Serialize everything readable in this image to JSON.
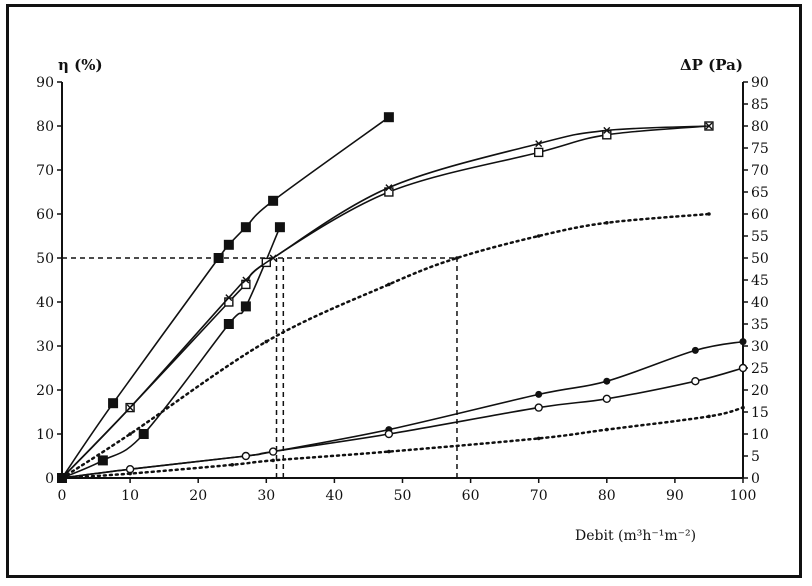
{
  "chart_data": {
    "type": "line",
    "ylabel_left": "η (%)",
    "ylabel_right": "ΔP (Pa)",
    "xlabel": "Debit (m³h⁻¹m⁻²)",
    "xlim": [
      0,
      100
    ],
    "ylim_left": [
      0,
      90
    ],
    "ylim_right": [
      0,
      90
    ],
    "x_ticks": [
      "0",
      "10",
      "20",
      "30",
      "40",
      "50",
      "60",
      "70",
      "80",
      "90",
      "100"
    ],
    "y_left_ticks": [
      "0",
      "10",
      "20",
      "30",
      "40",
      "50",
      "60",
      "70",
      "80",
      "90"
    ],
    "y_right_ticks": [
      "0",
      "5",
      "10",
      "15",
      "20",
      "25",
      "30",
      "35",
      "40",
      "45",
      "50",
      "55",
      "60",
      "65",
      "70",
      "75",
      "80",
      "85",
      "90"
    ],
    "series": [
      {
        "style": "solid",
        "marker": "filled-square",
        "axis": "left",
        "x": [
          0,
          7.5,
          23,
          24.5,
          27,
          31,
          48
        ],
        "y": [
          0,
          17,
          50,
          53,
          57,
          63,
          82
        ]
      },
      {
        "style": "solid",
        "marker": "filled-square",
        "axis": "left",
        "x": [
          0,
          6,
          12,
          24.5,
          27,
          32
        ],
        "y": [
          0,
          4,
          10,
          35,
          39,
          57
        ]
      },
      {
        "style": "solid",
        "marker": "open-square",
        "axis": "left",
        "x": [
          0,
          10,
          24.5,
          27,
          30,
          48,
          70,
          80,
          95
        ],
        "y": [
          0,
          16,
          40,
          44,
          49,
          65,
          74,
          78,
          80
        ]
      },
      {
        "style": "solid",
        "marker": "cross",
        "axis": "left",
        "x": [
          0,
          10,
          24.5,
          27,
          31,
          48,
          70,
          80,
          95
        ],
        "y": [
          0,
          16,
          41,
          45,
          50,
          66,
          76,
          79,
          80
        ]
      },
      {
        "style": "dotted",
        "marker": "dot",
        "axis": "left",
        "x": [
          0,
          10,
          30,
          48,
          58,
          70,
          80,
          95
        ],
        "y": [
          0,
          10,
          31,
          44,
          50,
          55,
          58,
          60
        ]
      },
      {
        "style": "solid",
        "marker": "filled-circle",
        "axis": "right",
        "x": [
          0,
          10,
          27,
          31,
          48,
          70,
          80,
          93,
          100
        ],
        "y": [
          0,
          2,
          5,
          6,
          11,
          19,
          22,
          29,
          31
        ]
      },
      {
        "style": "solid",
        "marker": "open-circle",
        "axis": "right",
        "x": [
          0,
          10,
          27,
          31,
          48,
          70,
          80,
          93,
          100
        ],
        "y": [
          0,
          2,
          5,
          6,
          10,
          16,
          18,
          22,
          25
        ]
      },
      {
        "style": "dotted",
        "marker": "dot",
        "axis": "right",
        "x": [
          0,
          10,
          25,
          31,
          48,
          70,
          80,
          95,
          100
        ],
        "y": [
          0,
          1,
          3,
          4,
          6,
          9,
          11,
          14,
          16
        ]
      }
    ],
    "reference_lines": [
      {
        "orientation": "horizontal",
        "y": 50,
        "x_from": 0,
        "x_to": 58
      },
      {
        "orientation": "vertical",
        "x": 31.5,
        "y_from": 0,
        "y_to": 50
      },
      {
        "orientation": "vertical",
        "x": 32.5,
        "y_from": 0,
        "y_to": 50
      },
      {
        "orientation": "vertical",
        "x": 58,
        "y_from": 0,
        "y_to": 50
      }
    ]
  }
}
